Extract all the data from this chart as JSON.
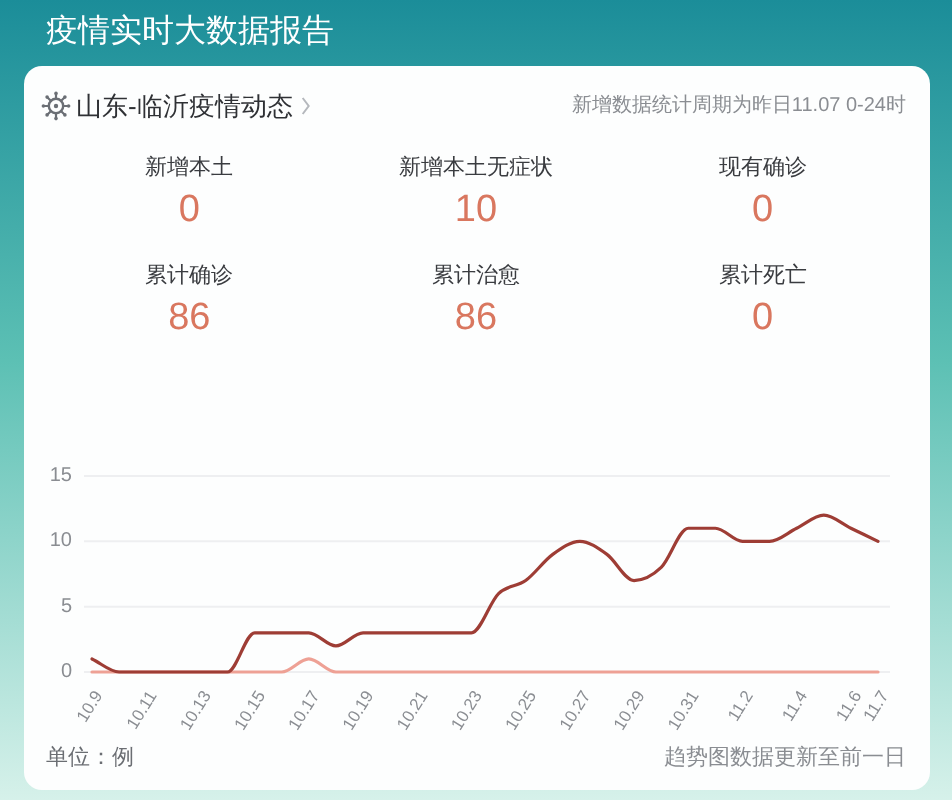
{
  "chart_data": [
    {
      "type": "other",
      "title": "疫情实时大数据报告",
      "subtitle": "山东-临沂疫情动态",
      "annotations": [
        "新增数据统计周期为昨日11.07 0-24时"
      ],
      "categories": [
        "新增本土",
        "新增本土无症状",
        "现有确诊",
        "累计确诊",
        "累计治愈",
        "累计死亡"
      ],
      "values": [
        0,
        10,
        0,
        86,
        86,
        0
      ],
      "data_labels": true,
      "color": "#d9775f"
    },
    {
      "type": "line",
      "categories": [
        "10.9",
        null,
        "10.11",
        null,
        "10.13",
        null,
        "10.15",
        null,
        "10.17",
        null,
        "10.19",
        null,
        "10.21",
        null,
        "10.23",
        null,
        "10.25",
        null,
        "10.27",
        null,
        "10.29",
        null,
        "10.31",
        null,
        "11.2",
        null,
        "11.4",
        null,
        "11.6",
        "11.7"
      ],
      "series": [
        {
          "color": "#eea195",
          "values": [
            0,
            0,
            0,
            0,
            0,
            0,
            0,
            0,
            1,
            0,
            0,
            0,
            0,
            0,
            0,
            0,
            0,
            0,
            0,
            0,
            0,
            0,
            0,
            0,
            0,
            0,
            0,
            0,
            0,
            0
          ]
        },
        {
          "color": "#9e3d35",
          "values": [
            1,
            0,
            0,
            0,
            0,
            0,
            3,
            3,
            3,
            2,
            3,
            3,
            3,
            3,
            3,
            6,
            7,
            9,
            10,
            9,
            7,
            8,
            11,
            11,
            10,
            10,
            11,
            12,
            11,
            10
          ]
        }
      ],
      "ylim": [
        0,
        15
      ],
      "yticks": [
        0,
        5,
        10,
        15
      ],
      "grid": "y",
      "annotations": [
        "单位：例",
        "趋势图数据更新至前一日"
      ]
    }
  ]
}
